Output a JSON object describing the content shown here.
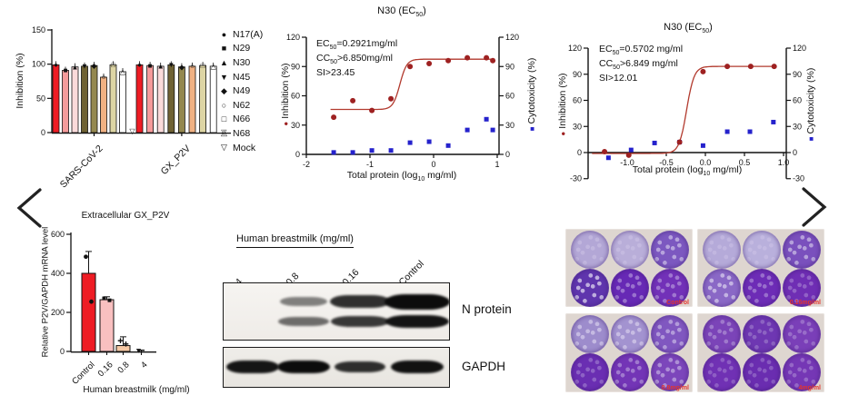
{
  "figure": {
    "background": "#ffffff"
  },
  "icons": {
    "prev": "chevron-left",
    "next": "chevron-right"
  },
  "chart_data": [
    {
      "id": "inhibition_bars",
      "type": "bar",
      "title": "",
      "ylabel": "Inhibition (%)",
      "ylim": [
        0,
        150
      ],
      "yticks": {
        "values": [
          0,
          50,
          100,
          150
        ],
        "labels": [
          "0",
          "50",
          "100",
          "150"
        ]
      },
      "categories": [
        "SARS-CoV-2",
        "GX_P2V"
      ],
      "series": [
        {
          "name": "N17(A)",
          "marker": "filled-circle",
          "color": "#ee1c24",
          "values": [
            99,
            99
          ]
        },
        {
          "name": "N29",
          "marker": "filled-square",
          "color": "#f59b9b",
          "values": [
            91,
            98
          ]
        },
        {
          "name": "N30",
          "marker": "filled-triangle",
          "color": "#fadada",
          "values": [
            96,
            97
          ]
        },
        {
          "name": "N45",
          "marker": "filled-triangle-down",
          "color": "#6f6233",
          "values": [
            97,
            99
          ]
        },
        {
          "name": "N49",
          "marker": "filled-diamond",
          "color": "#94884f",
          "values": [
            98,
            96
          ]
        },
        {
          "name": "N62",
          "marker": "open-circle",
          "color": "#f0b183",
          "values": [
            81,
            97
          ]
        },
        {
          "name": "N66",
          "marker": "open-square",
          "color": "#ddd5a4",
          "values": [
            99,
            98
          ]
        },
        {
          "name": "N68",
          "marker": "open-triangle",
          "color": "#ffffff",
          "values": [
            89,
            97
          ]
        },
        {
          "name": "Mock",
          "marker": "open-triangle-down",
          "color": "#ffffff",
          "values": [
            2,
            1
          ]
        }
      ]
    },
    {
      "id": "dose_response_1",
      "type": "scatter-line",
      "title_pre": "N30 (EC",
      "title_sub": "50",
      "title_post": ")",
      "annotation": {
        "ec_pre": "EC",
        "ec_sub": "50",
        "ec_post": "=0.2921mg/ml",
        "cc_pre": "CC",
        "cc_sub": "50",
        "cc_post": ">6.850mg/ml",
        "si": "SI>23.45"
      },
      "xlabel_pre": "Total protein (log",
      "xlabel_sub": "10",
      "xlabel_post": " mg/ml)",
      "ylabel_left": "Inhibition (%)",
      "ylabel_right": "Cytotoxicity (%)",
      "xlim": [
        -2,
        1
      ],
      "ylim": [
        0,
        120
      ],
      "xticks": {
        "values": [
          -2,
          -1,
          0,
          1
        ],
        "labels": [
          "-2",
          "-1",
          "0",
          "1"
        ]
      },
      "yticks": {
        "values": [
          0,
          30,
          60,
          90,
          120
        ],
        "labels": [
          "0",
          "30",
          "60",
          "90",
          "120"
        ]
      },
      "series": [
        {
          "name": "Inhibition",
          "marker": "circle",
          "color": "#9e2121",
          "x": [
            -1.57,
            -1.27,
            -0.97,
            -0.67,
            -0.37,
            -0.07,
            0.23,
            0.53,
            0.83,
            0.93
          ],
          "y": [
            38,
            55,
            45,
            57,
            90,
            93,
            96,
            99,
            99,
            96
          ]
        },
        {
          "name": "Cytotoxicity",
          "marker": "square",
          "color": "#2522cc",
          "x": [
            -1.57,
            -1.27,
            -0.97,
            -0.67,
            -0.37,
            -0.07,
            0.23,
            0.53,
            0.83,
            0.93
          ],
          "y": [
            2,
            2,
            4,
            4,
            12,
            13,
            9,
            25,
            36,
            25
          ]
        }
      ],
      "curve": {
        "color": "#b23a2e",
        "bottom": 46,
        "top": 97.5,
        "logec50": -0.53,
        "hill": 8,
        "xmin": -1.62,
        "xmax": 0.95
      }
    },
    {
      "id": "dose_response_2",
      "type": "scatter-line",
      "title_pre": "N30 (EC",
      "title_sub": "50",
      "title_post": ")",
      "annotation": {
        "ec_pre": "EC",
        "ec_sub": "50",
        "ec_post": "=0.5702 mg/ml",
        "cc_pre": "CC",
        "cc_sub": "50",
        "cc_post": ">6.849 mg/ml",
        "si": "SI>12.01"
      },
      "xlabel_pre": "Total protein (log",
      "xlabel_sub": "10",
      "xlabel_post": " mg/ml)",
      "ylabel_left": "Inhibition (%)",
      "ylabel_right": "Cytotoxicity (%)",
      "xlim": [
        -1.5,
        1
      ],
      "ylim": [
        -30,
        120
      ],
      "xticks": {
        "values": [
          -1.0,
          -0.5,
          0,
          0.5,
          1.0
        ],
        "labels": [
          "-1.0",
          "-0.5",
          "0.0",
          "0.5",
          "1.0"
        ]
      },
      "yticks": {
        "values": [
          -30,
          0,
          30,
          60,
          90,
          120
        ],
        "labels": [
          "-30",
          "0",
          "30",
          "60",
          "90",
          "120"
        ]
      },
      "series": [
        {
          "name": "Inhibition",
          "marker": "circle",
          "color": "#9e2121",
          "x": [
            -1.29,
            -0.98,
            -0.33,
            -0.03,
            0.28,
            0.58,
            0.88
          ],
          "y": [
            1,
            -3,
            12,
            93,
            99,
            99,
            99
          ]
        },
        {
          "name": "Cytotoxicity",
          "marker": "square",
          "color": "#2522cc",
          "x": [
            -1.24,
            -0.95,
            -0.65,
            -0.33,
            -0.03,
            0.28,
            0.57,
            0.87
          ],
          "y": [
            -6,
            3,
            11,
            12,
            8,
            24,
            24,
            35
          ]
        }
      ],
      "curve": {
        "color": "#b23a2e",
        "bottom": -1,
        "top": 99,
        "logec50": -0.24,
        "hill": 9,
        "xmin": -1.45,
        "xmax": 0.9
      }
    },
    {
      "id": "mrna_bars",
      "type": "bar",
      "title": "Extracellular GX_P2V",
      "ylabel": "Relative P2V/GAPDH mRNA level",
      "xlabel": "Human breastmilk (mg/ml)",
      "ylim": [
        0,
        600
      ],
      "yticks": {
        "values": [
          0,
          200,
          400,
          600
        ],
        "labels": [
          "0",
          "200",
          "400",
          "600"
        ]
      },
      "categories": [
        "Control",
        "0.16",
        "0.8",
        "4"
      ],
      "values": [
        400,
        265,
        30,
        3
      ],
      "errors": [
        112,
        15,
        45,
        4
      ],
      "points": [
        [
          485,
          255
        ],
        [
          272,
          262
        ],
        [
          55,
          38
        ],
        [
          4
        ]
      ],
      "point_markers": [
        "circle",
        "square",
        "plus",
        "triangle-down"
      ],
      "colors": [
        "#ee1c24",
        "#f9c0c0",
        "#f5c8a4",
        "#f5c8a4"
      ]
    }
  ],
  "western_blot": {
    "header": "Human breastmilk (mg/ml)",
    "lanes": [
      "4",
      "0.8",
      "0.16",
      "Control"
    ],
    "targets": {
      "row1": "N protein",
      "row2": "GAPDH"
    },
    "n_protein_bands": [
      [
        0,
        0
      ],
      [
        0.35,
        0.45
      ],
      [
        0.8,
        0.75
      ],
      [
        1.0,
        0.95
      ]
    ],
    "gapdh_bands": [
      0.92,
      1.0,
      0.72,
      0.95
    ]
  },
  "plates": {
    "label_color": "#e5352b",
    "items": [
      {
        "label": "Control",
        "wells": [
          "#b3a7d6",
          "#b9aed9",
          "#7c58c0",
          "#5f35ad",
          "#6729b5",
          "#7231b8"
        ],
        "plaques": [
          0.15,
          0.1,
          0.6,
          0.85,
          0.3,
          0.3
        ]
      },
      {
        "label": "0.16mg/ml",
        "wells": [
          "#b5aad9",
          "#b9b0dc",
          "#7a50bd",
          "#8a68c6",
          "#6d2cb6",
          "#6f2eb4"
        ],
        "plaques": [
          0.1,
          0.1,
          0.6,
          0.75,
          0.25,
          0.1
        ]
      },
      {
        "label": "0.8mg/ml",
        "wells": [
          "#9d8ccc",
          "#a393d0",
          "#8057c0",
          "#6a2eb2",
          "#7335b6",
          "#7c46bb"
        ],
        "plaques": [
          0.65,
          0.65,
          0.5,
          0.1,
          0.3,
          0.45
        ]
      },
      {
        "label": "4mg/ml",
        "wells": [
          "#7b44b8",
          "#6e37b2",
          "#7a3fb8",
          "#7031b4",
          "#6a2db0",
          "#7537b5"
        ],
        "plaques": [
          0.2,
          0.05,
          0.1,
          0.05,
          0.05,
          0.1
        ]
      }
    ]
  }
}
